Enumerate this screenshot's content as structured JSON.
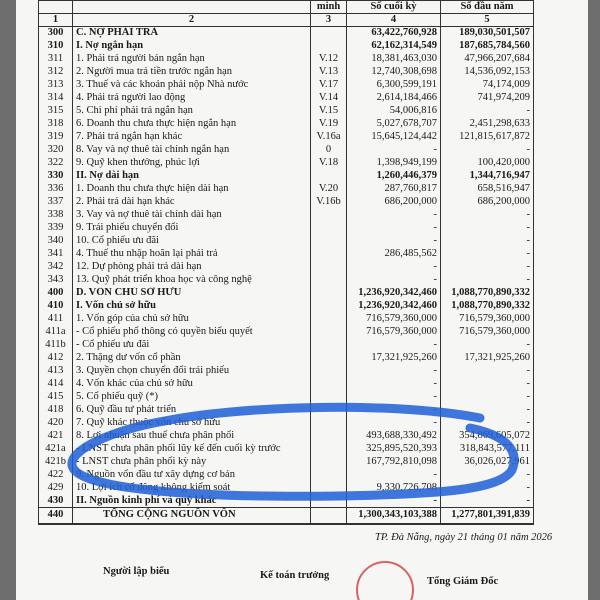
{
  "header": {
    "col3_partial": "minh",
    "col4": "Số cuối kỳ",
    "col5": "Số đầu năm",
    "nums": [
      "1",
      "2",
      "3",
      "4",
      "5"
    ]
  },
  "rows": [
    [
      "300",
      "C.  NỢ PHẢI TRẢ",
      "",
      "63,422,760,928",
      "189,030,501,507",
      1
    ],
    [
      "310",
      "I.  Nợ ngắn hạn",
      "",
      "62,162,314,549",
      "187,685,784,560",
      1
    ],
    [
      "311",
      "1.  Phải trả người bán ngắn hạn",
      "V.12",
      "18,381,463,030",
      "47,966,207,684",
      0
    ],
    [
      "312",
      "2.  Người mua trả tiền trước ngắn hạn",
      "V.13",
      "12,740,308,698",
      "14,536,092,153",
      0
    ],
    [
      "313",
      "3.  Thuế và các khoản phải nộp Nhà nước",
      "V.17",
      "6,300,599,191",
      "74,174,009",
      0
    ],
    [
      "314",
      "4.  Phải trả người lao động",
      "V.14",
      "2,614,184,466",
      "741,974,209",
      0
    ],
    [
      "315",
      "5.  Chi phí phải trả ngắn hạn",
      "V.15",
      "54,006,816",
      "-",
      0
    ],
    [
      "318",
      "6.  Doanh thu chưa thực hiện ngắn hạn",
      "V.19",
      "5,027,678,707",
      "2,451,298,633",
      0
    ],
    [
      "319",
      "7.  Phải trả ngắn hạn khác",
      "V.16a",
      "15,645,124,442",
      "121,815,617,872",
      0
    ],
    [
      "320",
      "8.  Vay và nợ thuê tài chính ngắn hạn",
      "0",
      "-",
      "-",
      0
    ],
    [
      "322",
      "9.  Quỹ khen thưởng, phúc lợi",
      "V.18",
      "1,398,949,199",
      "100,420,000",
      0
    ],
    [
      "330",
      "II. Nợ dài hạn",
      "",
      "1,260,446,379",
      "1,344,716,947",
      1
    ],
    [
      "336",
      "1.  Doanh thu chưa thực hiện dài hạn",
      "V.20",
      "287,760,817",
      "658,516,947",
      0
    ],
    [
      "337",
      "2.  Phải trả dài hạn khác",
      "V.16b",
      "686,200,000",
      "686,200,000",
      0
    ],
    [
      "338",
      "3.  Vay và nợ thuê tài chính dài hạn",
      "",
      "-",
      "-",
      0
    ],
    [
      "339",
      "9.  Trái phiếu chuyển đổi",
      "",
      "-",
      "-",
      0
    ],
    [
      "340",
      "10. Cổ phiếu ưu đãi",
      "",
      "-",
      "-",
      0
    ],
    [
      "341",
      "4.  Thuế thu nhập hoãn lại phải trả",
      "",
      "286,485,562",
      "-",
      0
    ],
    [
      "342",
      "12. Dự phòng phải trả dài hạn",
      "",
      "-",
      "-",
      0
    ],
    [
      "343",
      "13. Quỹ phát triển khoa học và công nghệ",
      "",
      "-",
      "-",
      0
    ],
    [
      "400",
      "D.  VỐN CHỦ SỞ HỮU",
      "",
      "1,236,920,342,460",
      "1,088,770,890,332",
      1
    ],
    [
      "410",
      "I.  Vốn chủ sở hữu",
      "",
      "1,236,920,342,460",
      "1,088,770,890,332",
      1
    ],
    [
      "411",
      "1.  Vốn góp của chủ sở hữu",
      "",
      "716,579,360,000",
      "716,579,360,000",
      0
    ],
    [
      "411a",
      "     - Cổ phiếu phổ thông có quyền biểu quyết",
      "",
      "716,579,360,000",
      "716,579,360,000",
      0
    ],
    [
      "411b",
      "     - Cổ phiếu ưu đãi",
      "",
      "-",
      "-",
      0
    ],
    [
      "412",
      "2.  Thặng dư vốn cổ phần",
      "",
      "17,321,925,260",
      "17,321,925,260",
      0
    ],
    [
      "413",
      "3.  Quyền chọn chuyển đổi trái phiếu",
      "",
      "-",
      "-",
      0
    ],
    [
      "414",
      "4.  Vốn khác của chủ sở hữu",
      "",
      "-",
      "-",
      0
    ],
    [
      "415",
      "5.  Cổ phiếu quỹ (*)",
      "",
      "-",
      "-",
      0
    ],
    [
      "418",
      "6.  Quỹ đầu tư phát triển",
      "",
      "-",
      "-",
      0
    ],
    [
      "420",
      "7.  Quỹ khác thuộc vốn chủ sở hữu",
      "",
      "-",
      "-",
      0
    ],
    [
      "421",
      "8.  Lợi nhuận sau thuế chưa phân phối",
      "",
      "493,688,330,492",
      "354,869,605,072",
      0
    ],
    [
      "421a",
      "     - LNST chưa phân phối lũy kế đến cuối kỳ trước",
      "",
      "325,895,520,393",
      "318,843,577,111",
      0
    ],
    [
      "421b",
      "     - LNST chưa phân phối kỳ này",
      "",
      "167,792,810,098",
      "36,026,027,961",
      0
    ],
    [
      "422",
      "9.  Nguồn vốn đầu tư xây dựng cơ bản",
      "",
      "-",
      "-",
      0
    ],
    [
      "429",
      "10. Lợi ích cổ đông không kiểm soát",
      "",
      "9,330,726,708",
      "-",
      0
    ],
    [
      "430",
      "II. Nguồn kinh phí và quỹ khác",
      "",
      "-",
      "-",
      1
    ]
  ],
  "total": {
    "code": "440",
    "label": "TỔNG CỘNG NGUỒN VỐN",
    "end": "1,300,343,103,388",
    "begin": "1,277,801,391,839"
  },
  "footer": {
    "date": "TP. Đà Nẵng, ngày 21 tháng 01 năm 2026",
    "preparer": "Người lập biểu",
    "accountant": "Kế toán trưởng",
    "director": "Tổng Giám Đốc",
    "stamp": "0400101333 CÔNG TY"
  },
  "colors": {
    "annotation": "#1f5fd6",
    "stamp": "#d04040"
  }
}
